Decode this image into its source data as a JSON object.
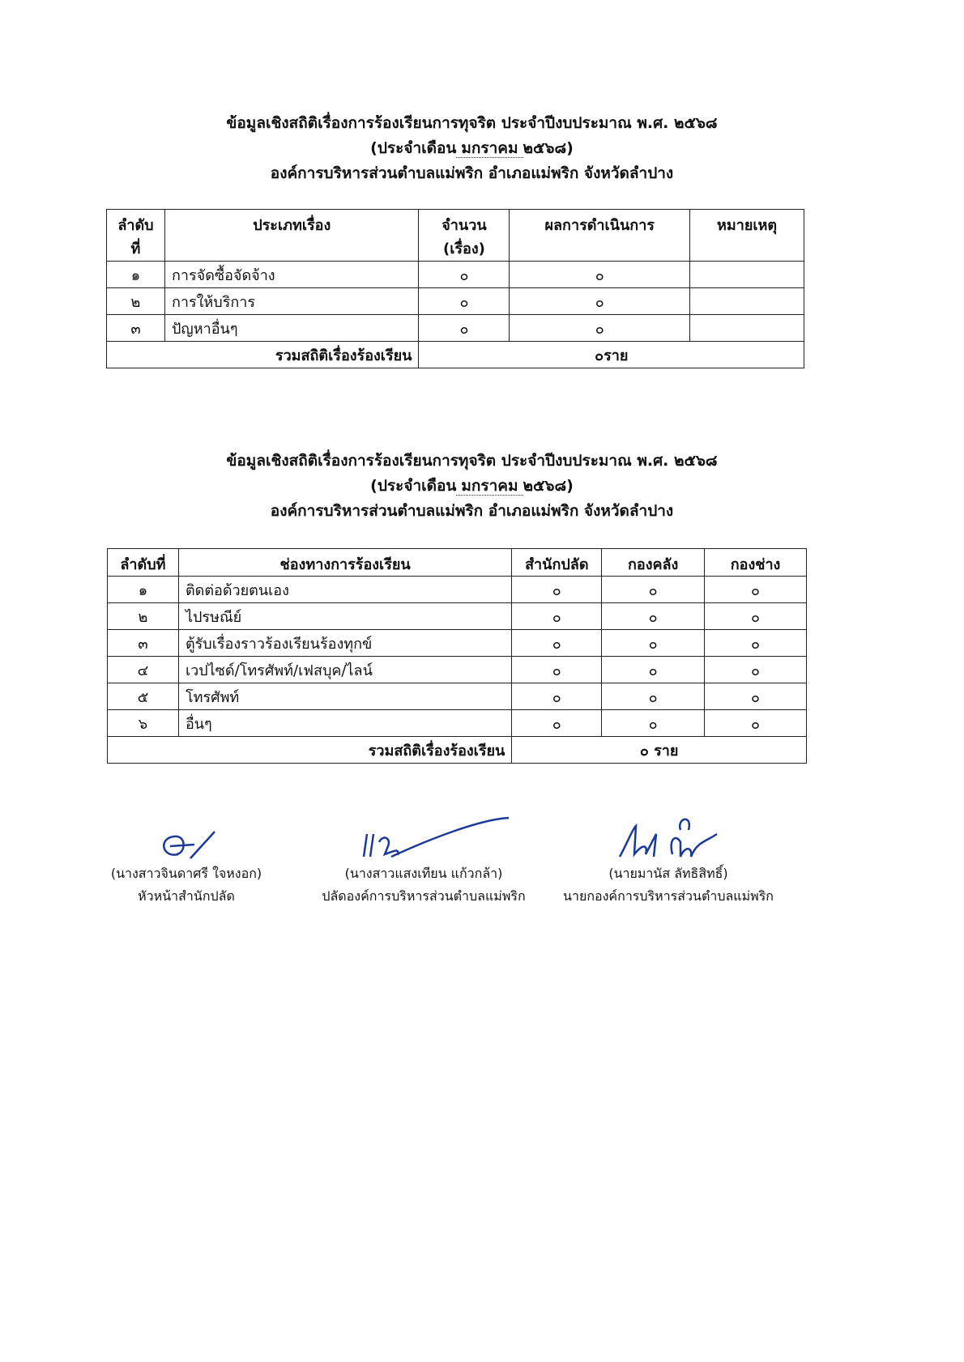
{
  "section1": {
    "title": "ข้อมูลเชิงสถิติเรื่องการร้องเรียนการทุจริต ประจำปีงบประมาณ พ.ศ. ๒๕๖๘",
    "month_prefix": "(ประจำเดือน",
    "month": "มกราคม",
    "year": "๒๕๖๘)",
    "org": "องค์การบริหารส่วนตำบลแม่พริก อำเภอแม่พริก จังหวัดลำปาง",
    "headers": [
      "ลำดับที่",
      "ประเภทเรื่อง",
      "จำนวน (เรื่อง)",
      "ผลการดำเนินการ",
      "หมายเหตุ"
    ],
    "rows": [
      {
        "no": "๑",
        "type": "การจัดซื้อจัดจ้าง",
        "count": "๐",
        "result": "๐",
        "note": ""
      },
      {
        "no": "๒",
        "type": "การให้บริการ",
        "count": "๐",
        "result": "๐",
        "note": ""
      },
      {
        "no": "๓",
        "type": "ปัญหาอื่นๆ",
        "count": "๐",
        "result": "๐",
        "note": ""
      }
    ],
    "total_label": "รวมสถิติเรื่องร้องเรียน",
    "total_value": "๐ราย"
  },
  "section2": {
    "title": "ข้อมูลเชิงสถิติเรื่องการร้องเรียนการทุจริต ประจำปีงบประมาณ พ.ศ. ๒๕๖๘",
    "month_prefix": "(ประจำเดือน",
    "month": "มกราคม",
    "year": "๒๕๖๘)",
    "org": "องค์การบริหารส่วนตำบลแม่พริก อำเภอแม่พริก จังหวัดลำปาง",
    "headers": [
      "ลำดับที่",
      "ช่องทางการร้องเรียน",
      "สำนักปลัด",
      "กองคลัง",
      "กองช่าง"
    ],
    "rows": [
      {
        "no": "๑",
        "channel": "ติดต่อด้วยตนเอง",
        "a": "๐",
        "b": "๐",
        "c": "๐"
      },
      {
        "no": "๒",
        "channel": "ไปรษณีย์",
        "a": "๐",
        "b": "๐",
        "c": "๐"
      },
      {
        "no": "๓",
        "channel": "ตู้รับเรื่องราวร้องเรียนร้องทุกข์",
        "a": "๐",
        "b": "๐",
        "c": "๐"
      },
      {
        "no": "๔",
        "channel": "เวปไซด์/โทรศัพท์/เฟสบุค/ไลน์",
        "a": "๐",
        "b": "๐",
        "c": "๐"
      },
      {
        "no": "๕",
        "channel": "โทรศัพท์",
        "a": "๐",
        "b": "๐",
        "c": "๐"
      },
      {
        "no": "๖",
        "channel": "อื่นๆ",
        "a": "๐",
        "b": "๐",
        "c": "๐"
      }
    ],
    "total_label": "รวมสถิติเรื่องร้องเรียน",
    "total_value": "๐ ราย"
  },
  "signatures": [
    {
      "name": "(นางสาวจินดาศรี  ใจหงอก)",
      "position": "หัวหน้าสำนักปลัด"
    },
    {
      "name": "(นางสาวแสงเทียน  แก้วกล้า)",
      "position": "ปลัดองค์การบริหารส่วนตำบลแม่พริก"
    },
    {
      "name": "(นายมานัส  ลัทธิสิทธิ์)",
      "position": "นายกองค์การบริหารส่วนตำบลแม่พริก"
    }
  ],
  "colors": {
    "ink": "#111111",
    "signature": "#1a3a9a"
  }
}
